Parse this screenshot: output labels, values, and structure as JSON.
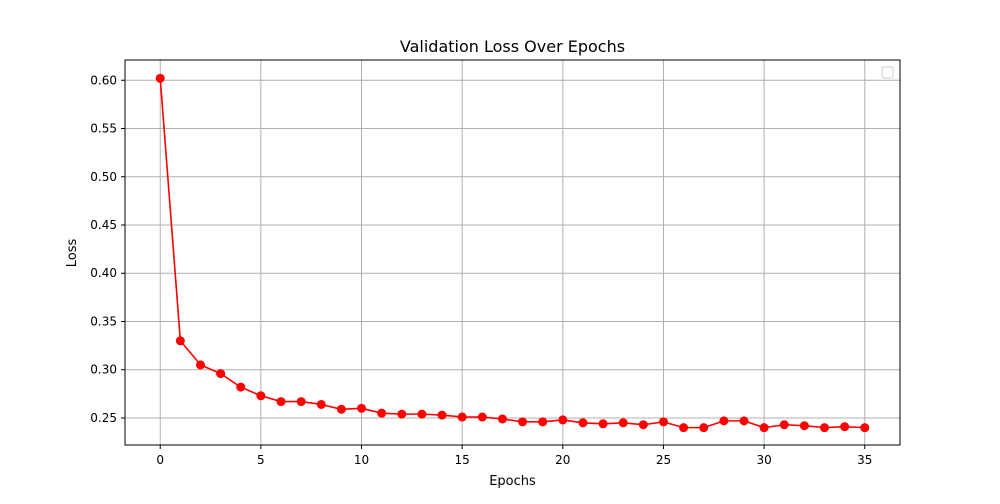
{
  "chart_data": {
    "type": "line",
    "title": "Validation Loss Over Epochs",
    "xlabel": "Epochs",
    "ylabel": "Loss",
    "xlim": [
      -1.75,
      36.75
    ],
    "ylim": [
      0.222,
      0.621
    ],
    "xticks": [
      0,
      5,
      10,
      15,
      20,
      25,
      30,
      35
    ],
    "xtick_labels": [
      "0",
      "5",
      "10",
      "15",
      "20",
      "25",
      "30",
      "35"
    ],
    "yticks": [
      0.25,
      0.3,
      0.35,
      0.4,
      0.45,
      0.5,
      0.55,
      0.6
    ],
    "ytick_labels": [
      "0.25",
      "0.30",
      "0.35",
      "0.40",
      "0.45",
      "0.50",
      "0.55",
      "0.60"
    ],
    "grid": true,
    "legend": {
      "location": "upper right",
      "entries": []
    },
    "colors": {
      "series": "#ff0000",
      "grid": "#b0b0b0",
      "axes": "#000000"
    },
    "series": [
      {
        "marker": "circle",
        "x": [
          0,
          1,
          2,
          3,
          4,
          5,
          6,
          7,
          8,
          9,
          10,
          11,
          12,
          13,
          14,
          15,
          16,
          17,
          18,
          19,
          20,
          21,
          22,
          23,
          24,
          25,
          26,
          27,
          28,
          29,
          30,
          31,
          32,
          33,
          34,
          35
        ],
        "values": [
          0.602,
          0.33,
          0.305,
          0.296,
          0.282,
          0.273,
          0.267,
          0.267,
          0.264,
          0.259,
          0.26,
          0.255,
          0.254,
          0.254,
          0.253,
          0.251,
          0.251,
          0.249,
          0.246,
          0.246,
          0.248,
          0.245,
          0.244,
          0.245,
          0.243,
          0.246,
          0.24,
          0.24,
          0.247,
          0.247,
          0.24,
          0.243,
          0.242,
          0.24,
          0.241,
          0.24
        ]
      }
    ]
  }
}
